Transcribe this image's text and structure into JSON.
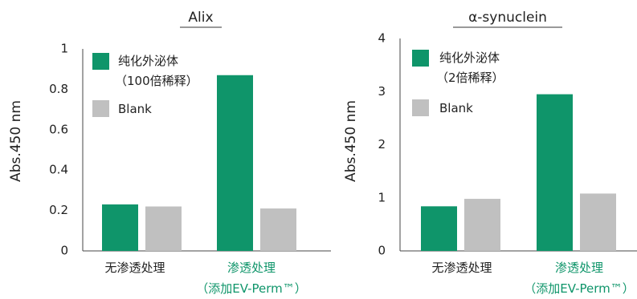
{
  "chart_data": [
    {
      "type": "bar",
      "title": "Alix",
      "ylabel": "Abs.450 nm",
      "xlabel": "",
      "ylim": [
        0,
        1
      ],
      "yticks": [
        0,
        0.2,
        0.4,
        0.6,
        0.8,
        1
      ],
      "ytick_labels": [
        "0",
        "0.2",
        "0.4",
        "0.6",
        "0.8",
        "1"
      ],
      "categories": [
        {
          "line1": "无渗透处理",
          "line2": "",
          "color": "#222222"
        },
        {
          "line1": "渗透处理",
          "line2": "（添加EV-Perm™）",
          "color": "#0f956a"
        }
      ],
      "series": [
        {
          "name": "纯化外泌体",
          "legend_note": "（100倍稀释）",
          "color": "#0f956a",
          "values": [
            0.23,
            0.87
          ]
        },
        {
          "name": "Blank",
          "color": "#c0c0c0",
          "values": [
            0.22,
            0.21
          ]
        }
      ],
      "grid": false,
      "legend_position": "top-left"
    },
    {
      "type": "bar",
      "title": "α-synuclein",
      "ylabel": "Abs.450 nm",
      "xlabel": "",
      "ylim": [
        0,
        4
      ],
      "yticks": [
        0,
        1,
        2,
        3,
        4
      ],
      "ytick_labels": [
        "0",
        "1",
        "2",
        "3",
        "4"
      ],
      "categories": [
        {
          "line1": "无渗透处理",
          "line2": "",
          "color": "#222222"
        },
        {
          "line1": "渗透处理",
          "line2": "（添加EV-Perm™）",
          "color": "#0f956a"
        }
      ],
      "series": [
        {
          "name": "纯化外泌体",
          "legend_note": "（2倍稀释）",
          "color": "#0f956a",
          "values": [
            0.84,
            2.95
          ]
        },
        {
          "name": "Blank",
          "color": "#c0c0c0",
          "values": [
            0.98,
            1.08
          ]
        }
      ],
      "grid": false,
      "legend_position": "top-left"
    }
  ]
}
